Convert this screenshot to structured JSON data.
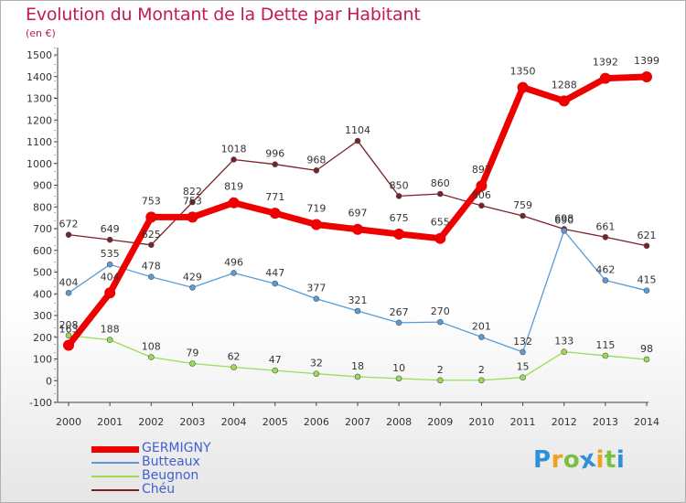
{
  "title": "Evolution du Montant de la Dette par Habitant",
  "unit": "(en €)",
  "chart_data": {
    "type": "line",
    "categories": [
      "2000",
      "2001",
      "2002",
      "2003",
      "2004",
      "2005",
      "2006",
      "2007",
      "2008",
      "2009",
      "2010",
      "2011",
      "2012",
      "2013",
      "2014"
    ],
    "ylim": [
      -100,
      1500
    ],
    "yticks": [
      -100,
      0,
      100,
      200,
      300,
      400,
      500,
      600,
      700,
      800,
      900,
      1000,
      1100,
      1200,
      1300,
      1400,
      1500
    ],
    "grid": false,
    "legend_position": "bottom-left",
    "series": [
      {
        "name": "Chéu",
        "color": "#7a2028",
        "values": [
          672,
          649,
          625,
          822,
          1018,
          996,
          968,
          1104,
          850,
          860,
          806,
          759,
          698,
          661,
          621
        ]
      },
      {
        "name": "Butteaux",
        "color": "#5b9bd5",
        "values": [
          404,
          535,
          478,
          429,
          496,
          447,
          377,
          321,
          267,
          270,
          201,
          132,
          690,
          462,
          415
        ]
      },
      {
        "name": "Beugnon",
        "color": "#99dd55",
        "values": [
          208,
          188,
          108,
          79,
          62,
          47,
          32,
          18,
          10,
          2,
          2,
          15,
          133,
          115,
          98
        ]
      },
      {
        "name": "GERMIGNY",
        "color": "#ee0000",
        "values": [
          163,
          404,
          753,
          753,
          819,
          771,
          719,
          697,
          675,
          655,
          897,
          1350,
          1288,
          1392,
          1399
        ]
      }
    ]
  },
  "legend": [
    {
      "name": "GERMIGNY",
      "color": "#ee0000"
    },
    {
      "name": "Butteaux",
      "color": "#5b9bd5"
    },
    {
      "name": "Beugnon",
      "color": "#99dd55"
    },
    {
      "name": "Chéu",
      "color": "#7a2028"
    }
  ],
  "logo": {
    "letters": [
      "P",
      "r",
      "o",
      "x",
      "i",
      "t",
      "i"
    ],
    "colors": [
      "#2f8fd8",
      "#f29f1b",
      "#7ac143",
      "#2f8fd8",
      "#f29f1b",
      "#7ac143",
      "#2f8fd8"
    ]
  }
}
